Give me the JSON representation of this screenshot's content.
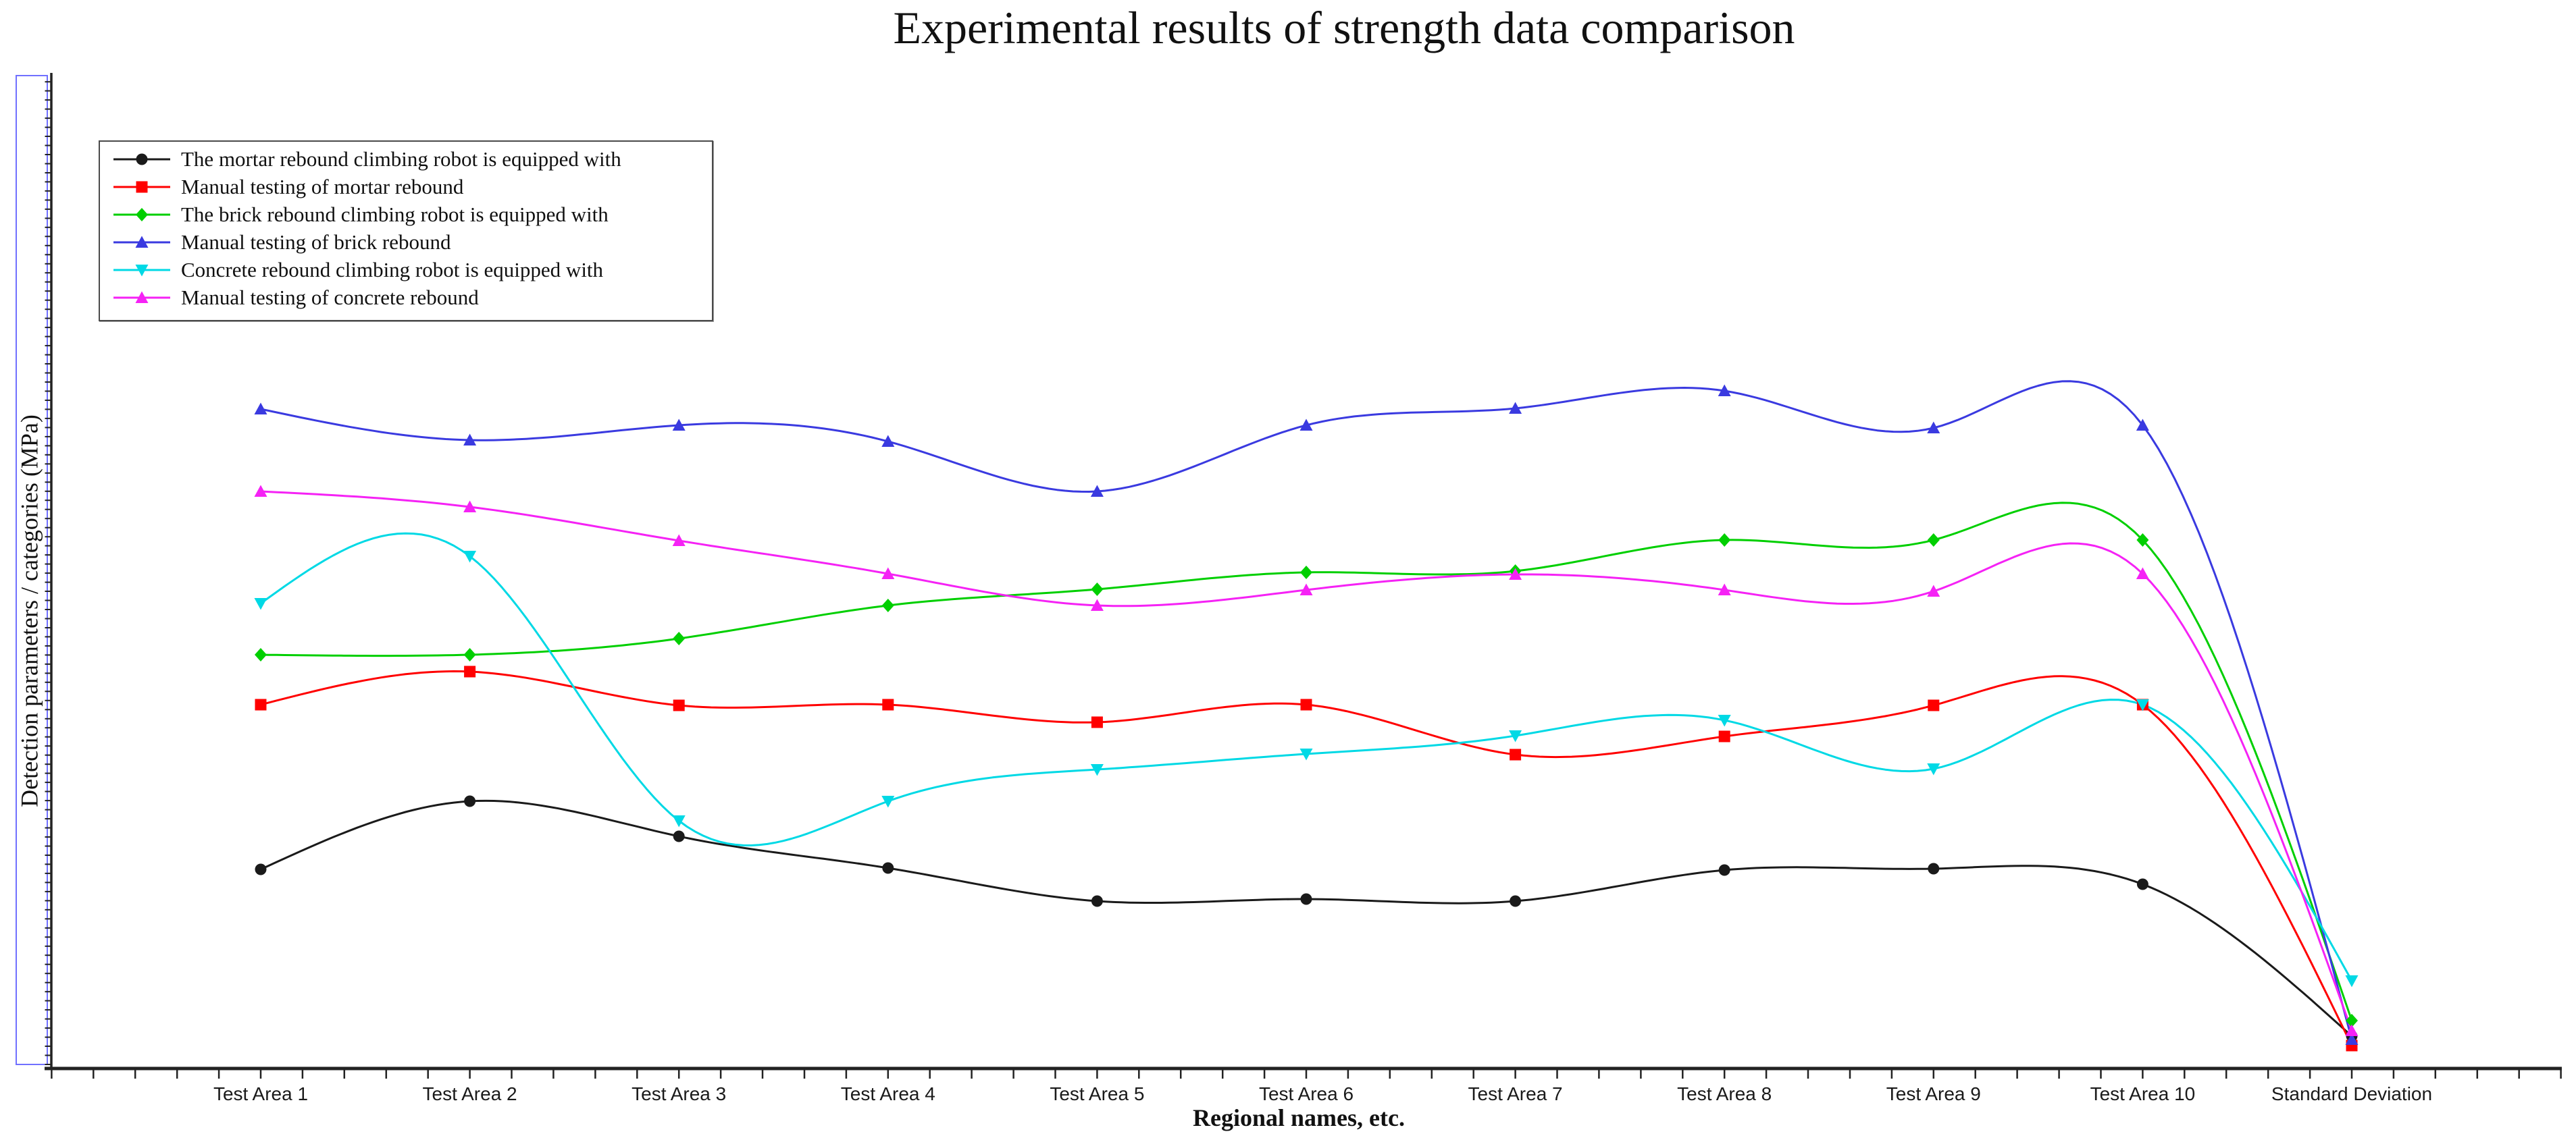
{
  "chart_data": {
    "type": "line",
    "title": "Experimental results of strength data comparison",
    "xlabel": "Regional names, etc.",
    "ylabel": "Detection parameters / categories (MPa)",
    "line_style": "smooth-spline",
    "grid": false,
    "legend_position": "top-left",
    "y_axis_numeric_labels_shown": false,
    "ylim": [
      0,
      115
    ],
    "axis_color": "#222222",
    "ylabel_frame_color": "#7070ff",
    "categories": [
      "Test Area 1",
      "Test Area 2",
      "Test Area 3",
      "Test Area 4",
      "Test Area 5",
      "Test Area 6",
      "Test Area 7",
      "Test Area 8",
      "Test Area 9",
      "Test Area 10",
      "Standard Deviation"
    ],
    "series": [
      {
        "name": "The mortar rebound climbing robot is equipped with",
        "color": "#1a1a1a",
        "marker": "circle",
        "values": [
          29.5,
          39.6,
          34.4,
          29.7,
          24.8,
          25.1,
          24.8,
          29.4,
          29.6,
          27.3,
          4.8
        ]
      },
      {
        "name": "Manual testing of mortar rebound",
        "color": "#ff0000",
        "marker": "square",
        "values": [
          53.9,
          58.8,
          53.8,
          53.9,
          51.3,
          53.9,
          46.5,
          49.2,
          53.8,
          53.9,
          3.4
        ]
      },
      {
        "name": "The brick rebound climbing robot is equipped with",
        "color": "#00cf00",
        "marker": "diamond",
        "values": [
          61.3,
          61.3,
          63.7,
          68.6,
          71.0,
          73.5,
          73.7,
          78.3,
          78.3,
          78.3,
          7.1
        ]
      },
      {
        "name": "Manual testing of brick rebound",
        "color": "#3a3ae0",
        "marker": "triangle-up",
        "values": [
          97.7,
          93.1,
          95.3,
          92.9,
          85.5,
          95.3,
          97.8,
          100.4,
          94.9,
          95.3,
          4.3
        ]
      },
      {
        "name": "Concrete rebound climbing robot is equipped with",
        "color": "#00d9e5",
        "marker": "triangle-down",
        "values": [
          68.9,
          75.9,
          36.7,
          39.6,
          44.3,
          46.6,
          49.3,
          51.6,
          44.4,
          53.9,
          13.0
        ]
      },
      {
        "name": "Manual testing of concrete rebound",
        "color": "#f522f5",
        "marker": "triangle-up",
        "values": [
          85.5,
          83.2,
          78.2,
          73.3,
          68.6,
          70.9,
          73.2,
          70.9,
          70.7,
          73.3,
          5.6
        ]
      }
    ]
  }
}
